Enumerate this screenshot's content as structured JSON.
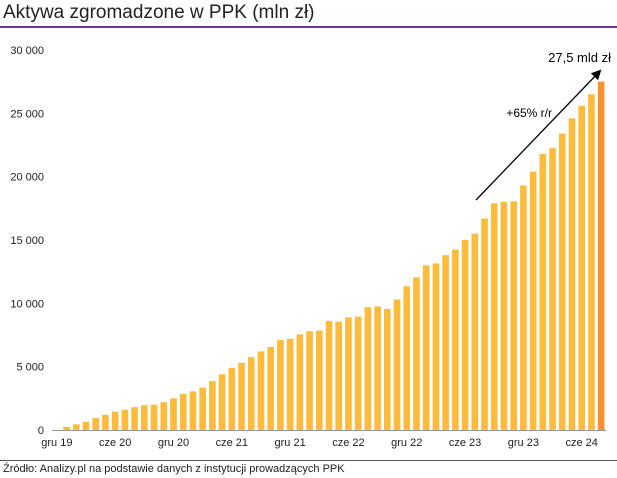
{
  "title": "Aktywa zgromadzone w PPK (mln zł)",
  "source": "Źródło: Analizy.pl na podstawie danych z instytucji prowadzących PPK",
  "colors": {
    "bar": "#fdbb3b",
    "bar_highlight": "#f5922f",
    "title_rule": "#7030a0",
    "axis": "#999999"
  },
  "chart_data": {
    "type": "bar",
    "title": "Aktywa zgromadzone w PPK (mln zł)",
    "xlabel": "",
    "ylabel": "",
    "ylim": [
      0,
      30000
    ],
    "yticks": [
      "0",
      "5 000",
      "10 000",
      "15 000",
      "20 000",
      "25 000",
      "30 000"
    ],
    "ytick_values": [
      0,
      5000,
      10000,
      15000,
      20000,
      25000,
      30000
    ],
    "xtick_labels": [
      {
        "label": "gru 19",
        "index": 0
      },
      {
        "label": "cze 20",
        "index": 6
      },
      {
        "label": "gru 20",
        "index": 12
      },
      {
        "label": "cze 21",
        "index": 18
      },
      {
        "label": "gru 21",
        "index": 24
      },
      {
        "label": "cze 22",
        "index": 30
      },
      {
        "label": "gru 22",
        "index": 36
      },
      {
        "label": "cze 23",
        "index": 42
      },
      {
        "label": "gru 23",
        "index": 48
      },
      {
        "label": "cze 24",
        "index": 54
      }
    ],
    "values": [
      0,
      250,
      450,
      650,
      950,
      1200,
      1450,
      1600,
      1800,
      1950,
      2000,
      2200,
      2500,
      2850,
      3050,
      3350,
      3850,
      4400,
      4900,
      5300,
      5750,
      6200,
      6550,
      7100,
      7200,
      7550,
      7800,
      7850,
      8600,
      8550,
      8900,
      8950,
      9700,
      9750,
      9550,
      10300,
      11350,
      12050,
      13000,
      13150,
      13800,
      14250,
      15000,
      15500,
      16700,
      17900,
      18000,
      18050,
      19300,
      20400,
      21800,
      22250,
      23400,
      24600,
      25600,
      26500,
      27500
    ],
    "highlight_last": true,
    "grid": false,
    "annotations": [
      {
        "text": "27,5 mld zł"
      },
      {
        "text": "+65% r/r"
      }
    ]
  }
}
